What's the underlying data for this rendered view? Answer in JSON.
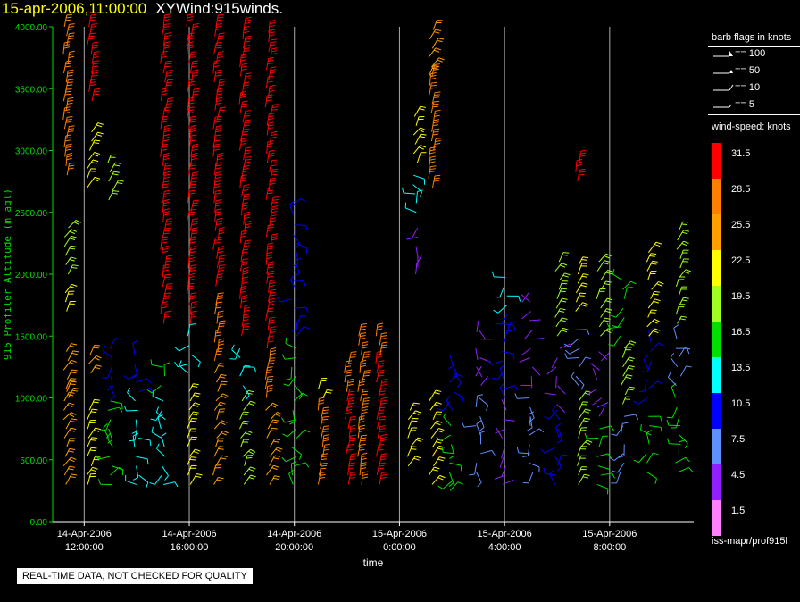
{
  "header": {
    "date_label": "15-apr-2006,11:00:00",
    "plot_name": "XYWind:915winds."
  },
  "chart_data": {
    "type": "wind-barb time-height",
    "ylabel": "915 Profiler Altitude (m agl)",
    "xlabel": "time",
    "ylim": [
      0,
      4000
    ],
    "y_ticks": [
      "0.00",
      "500.00",
      "1000.00",
      "1500.00",
      "2000.00",
      "2500.00",
      "3000.00",
      "3500.00",
      "4000.00"
    ],
    "x_ticks": [
      {
        "date": "14-Apr-2006",
        "time": "12:00:00"
      },
      {
        "date": "14-Apr-2006",
        "time": "16:00:00"
      },
      {
        "date": "14-Apr-2006",
        "time": "20:00:00"
      },
      {
        "date": "15-Apr-2006",
        "time": "0:00:00"
      },
      {
        "date": "15-Apr-2006",
        "time": "4:00:00"
      },
      {
        "date": "15-Apr-2006",
        "time": "8:00:00"
      }
    ],
    "xlim_hours": [
      -1.2,
      23.2
    ],
    "grid": "vertical lines at major ticks",
    "speed_classes": [
      {
        "label": "31.5",
        "color": "#ff0000"
      },
      {
        "label": "28.5",
        "color": "#ff8000"
      },
      {
        "label": "25.5",
        "color": "#ffa000"
      },
      {
        "label": "22.5",
        "color": "#ffff00"
      },
      {
        "label": "19.5",
        "color": "#a0ff20"
      },
      {
        "label": "16.5",
        "color": "#00e000"
      },
      {
        "label": "13.5",
        "color": "#00ffff"
      },
      {
        "label": "10.5",
        "color": "#0000ff"
      },
      {
        "label": "7.5",
        "color": "#6090ff"
      },
      {
        "label": "4.5",
        "color": "#9020ff"
      },
      {
        "label": "1.5",
        "color": "#ff80ff"
      }
    ],
    "barb_key": [
      "== 100",
      "== 50",
      "== 10",
      "== 5"
    ],
    "profiles": [
      {
        "t": -0.7,
        "levels": [
          [
            300,
            1100,
            2
          ],
          [
            1000,
            1400,
            2
          ],
          [
            1700,
            1900,
            3
          ],
          [
            2000,
            2400,
            4
          ],
          [
            2800,
            4000,
            1
          ]
        ]
      },
      {
        "t": 0.2,
        "levels": [
          [
            300,
            900,
            3
          ],
          [
            1200,
            1400,
            2
          ],
          [
            2700,
            3200,
            3
          ],
          [
            3400,
            4000,
            0
          ]
        ]
      },
      {
        "t": 1.0,
        "levels": [
          [
            300,
            1000,
            5
          ],
          [
            1100,
            1400,
            7
          ],
          [
            2600,
            2900,
            4
          ]
        ]
      },
      {
        "t": 2.0,
        "levels": [
          [
            300,
            1000,
            6
          ],
          [
            1050,
            1350,
            7
          ]
        ]
      },
      {
        "t": 3.0,
        "levels": [
          [
            300,
            1000,
            6
          ],
          [
            1100,
            1300,
            5
          ],
          [
            1600,
            4000,
            0
          ]
        ]
      },
      {
        "t": 4.0,
        "levels": [
          [
            300,
            1100,
            3
          ],
          [
            1200,
            1500,
            6
          ],
          [
            1600,
            4000,
            0
          ]
        ]
      },
      {
        "t": 5.0,
        "levels": [
          [
            300,
            1200,
            2
          ],
          [
            1300,
            1800,
            1
          ],
          [
            1900,
            4000,
            0
          ]
        ]
      },
      {
        "t": 6.0,
        "levels": [
          [
            300,
            1000,
            4
          ],
          [
            1100,
            1400,
            6
          ],
          [
            1500,
            4000,
            0
          ]
        ]
      },
      {
        "t": 7.0,
        "levels": [
          [
            300,
            900,
            2
          ],
          [
            1000,
            1300,
            1
          ],
          [
            1400,
            4000,
            0
          ]
        ]
      },
      {
        "t": 8.0,
        "levels": [
          [
            300,
            1000,
            5
          ],
          [
            1100,
            1400,
            5
          ],
          [
            1500,
            2600,
            7
          ]
        ]
      },
      {
        "t": 9.0,
        "levels": [
          [
            300,
            900,
            1
          ],
          [
            1000,
            1100,
            3
          ]
        ]
      },
      {
        "t": 10.0,
        "levels": [
          [
            300,
            1000,
            0
          ],
          [
            1050,
            1300,
            1
          ]
        ]
      },
      {
        "t": 10.5,
        "levels": [
          [
            300,
            1500,
            1
          ]
        ]
      },
      {
        "t": 11.2,
        "levels": [
          [
            300,
            1300,
            0
          ],
          [
            1350,
            1500,
            1
          ]
        ]
      },
      {
        "t": 12.4,
        "levels": [
          [
            450,
            950,
            3
          ]
        ]
      },
      {
        "t": 12.6,
        "levels": [
          [
            2000,
            2400,
            9
          ],
          [
            2500,
            2800,
            6
          ],
          [
            2900,
            3300,
            3
          ]
        ]
      },
      {
        "t": 13.2,
        "levels": [
          [
            300,
            1000,
            3
          ],
          [
            2700,
            3600,
            1
          ],
          [
            3600,
            4000,
            2
          ]
        ]
      },
      {
        "t": 14.0,
        "levels": [
          [
            250,
            800,
            5
          ],
          [
            900,
            1350,
            7
          ]
        ]
      },
      {
        "t": 15.0,
        "levels": [
          [
            400,
            1000,
            8
          ],
          [
            1100,
            1650,
            9
          ]
        ]
      },
      {
        "t": 16.0,
        "levels": [
          [
            300,
            900,
            9
          ],
          [
            1000,
            1700,
            7
          ],
          [
            1750,
            2000,
            6
          ]
        ]
      },
      {
        "t": 17.0,
        "levels": [
          [
            400,
            1000,
            8
          ],
          [
            1100,
            1900,
            9
          ]
        ]
      },
      {
        "t": 18.0,
        "levels": [
          [
            300,
            900,
            7
          ],
          [
            950,
            1400,
            9
          ],
          [
            1500,
            2100,
            4
          ]
        ]
      },
      {
        "t": 18.8,
        "levels": [
          [
            300,
            1000,
            4
          ],
          [
            1100,
            1600,
            8
          ],
          [
            1700,
            2100,
            3
          ],
          [
            2750,
            2900,
            0
          ]
        ]
      },
      {
        "t": 19.6,
        "levels": [
          [
            300,
            800,
            5
          ],
          [
            850,
            1400,
            9
          ],
          [
            1500,
            2100,
            4
          ]
        ]
      },
      {
        "t": 20.5,
        "levels": [
          [
            400,
            900,
            8
          ],
          [
            950,
            1450,
            4
          ],
          [
            1500,
            2000,
            5
          ]
        ]
      },
      {
        "t": 21.5,
        "levels": [
          [
            400,
            900,
            5
          ],
          [
            1000,
            1450,
            7
          ],
          [
            1500,
            2200,
            3
          ]
        ]
      },
      {
        "t": 22.6,
        "levels": [
          [
            400,
            1000,
            5
          ],
          [
            1100,
            1500,
            8
          ],
          [
            1600,
            2400,
            4
          ]
        ]
      }
    ]
  },
  "legend": {
    "barb_title": "barb flags in knots",
    "speed_title": "wind-speed: knots",
    "source": "iss-mapr/prof915l"
  },
  "notice": "REAL-TIME DATA, NOT CHECKED FOR QUALITY"
}
